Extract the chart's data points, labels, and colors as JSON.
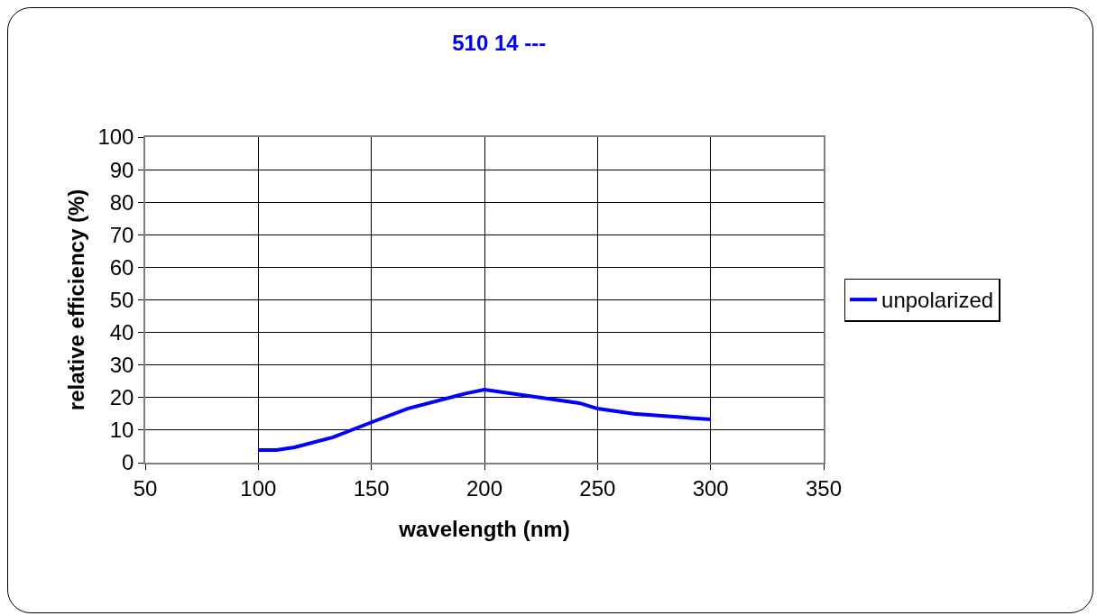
{
  "chart_data": {
    "type": "line",
    "title": "510 14 ---",
    "xlabel": "wavelength (nm)",
    "ylabel": "relative efficiency (%)",
    "x": [
      100,
      108,
      116,
      133,
      150,
      166,
      192,
      200,
      242,
      250,
      266,
      300
    ],
    "series": [
      {
        "name": "unpolarized",
        "color": "#0000ff",
        "values": [
          3.9,
          3.9,
          4.7,
          7.8,
          12.4,
          16.6,
          21.3,
          22.4,
          18.3,
          16.6,
          15.0,
          13.3
        ]
      }
    ],
    "xlim": [
      50,
      350
    ],
    "xticks": [
      50,
      100,
      150,
      200,
      250,
      300,
      350
    ],
    "ylim": [
      0,
      100
    ],
    "yticks": [
      0,
      10,
      20,
      30,
      40,
      50,
      60,
      70,
      80,
      90,
      100
    ],
    "grid": true,
    "legend": "right",
    "marker": "none",
    "line_style": "solid"
  }
}
